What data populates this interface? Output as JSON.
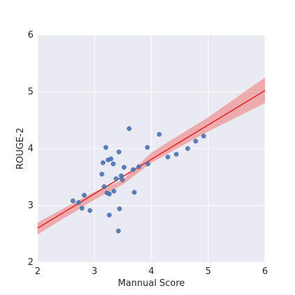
{
  "chart_data": {
    "type": "scatter",
    "title": "",
    "xlabel": "Mannual Score",
    "ylabel": "ROUGE-2",
    "xlim": [
      2,
      6
    ],
    "ylim": [
      2,
      6
    ],
    "x_ticks": [
      "2",
      "3",
      "4",
      "5",
      "6"
    ],
    "y_ticks": [
      "2",
      "3",
      "4",
      "5",
      "6"
    ],
    "grid": true,
    "legend": "none",
    "series": [
      {
        "points": [
          [
            2.62,
            3.08
          ],
          [
            2.72,
            3.05
          ],
          [
            2.78,
            2.95
          ],
          [
            2.82,
            3.18
          ],
          [
            2.92,
            2.91
          ],
          [
            3.13,
            3.55
          ],
          [
            3.15,
            3.75
          ],
          [
            3.17,
            3.33
          ],
          [
            3.2,
            4.02
          ],
          [
            3.22,
            3.22
          ],
          [
            3.24,
            3.8
          ],
          [
            3.26,
            3.2
          ],
          [
            3.26,
            2.83
          ],
          [
            3.29,
            3.82
          ],
          [
            3.33,
            3.73
          ],
          [
            3.34,
            3.25
          ],
          [
            3.38,
            3.47
          ],
          [
            3.42,
            2.55
          ],
          [
            3.43,
            3.94
          ],
          [
            3.44,
            2.94
          ],
          [
            3.47,
            3.52
          ],
          [
            3.49,
            3.45
          ],
          [
            3.52,
            3.67
          ],
          [
            3.61,
            4.35
          ],
          [
            3.68,
            3.63
          ],
          [
            3.7,
            3.23
          ],
          [
            3.78,
            3.68
          ],
          [
            3.93,
            4.02
          ],
          [
            3.94,
            3.73
          ],
          [
            4.14,
            4.25
          ],
          [
            4.29,
            3.85
          ],
          [
            4.44,
            3.9
          ],
          [
            4.64,
            4.0
          ],
          [
            4.78,
            4.13
          ],
          [
            4.92,
            4.22
          ]
        ],
        "marker_color": "#4c72b0"
      }
    ],
    "regression": {
      "color": "#e02020",
      "band_color": "#f08080",
      "line": [
        [
          2,
          2.6
        ],
        [
          6,
          5.02
        ]
      ],
      "band_upper": [
        [
          2,
          2.7
        ],
        [
          3,
          3.24
        ],
        [
          3.5,
          3.45
        ],
        [
          4,
          3.93
        ],
        [
          5,
          4.55
        ],
        [
          6,
          5.25
        ]
      ],
      "band_lower": [
        [
          2,
          2.49
        ],
        [
          3,
          3.1
        ],
        [
          3.5,
          3.37
        ],
        [
          4,
          3.75
        ],
        [
          5,
          4.3
        ],
        [
          6,
          4.8
        ]
      ]
    },
    "colors": {
      "plot_background": "#eaeaf2",
      "grid": "#ffffff"
    }
  }
}
